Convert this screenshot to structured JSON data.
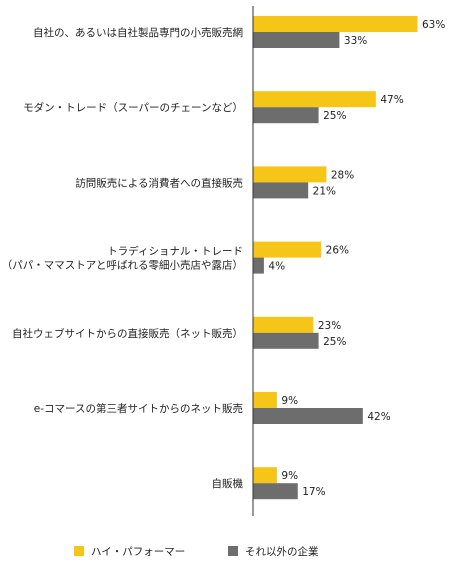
{
  "chart_data": {
    "type": "bar",
    "orientation": "horizontal",
    "categories": [
      [
        "自社の、あるいは自社製品専門の小売販売網"
      ],
      [
        "モダン・トレード（スーパーのチェーンなど）"
      ],
      [
        "訪問販売による消費者への直接販売"
      ],
      [
        "トラディショナル・トレード",
        "（パパ・ママストアと呼ばれる零細小売店や露店）"
      ],
      [
        "自社ウェブサイトからの直接販売（ネット販売）"
      ],
      [
        "e-コマースの第三者サイトからのネット販売"
      ],
      [
        "自販機"
      ]
    ],
    "series": [
      {
        "name": "ハイ・パフォーマー",
        "values": [
          63,
          47,
          28,
          26,
          23,
          9,
          9
        ],
        "color": "#F5C518"
      },
      {
        "name": "それ以外の企業",
        "values": [
          33,
          25,
          21,
          4,
          25,
          42,
          17
        ],
        "color": "#6D6D6D"
      }
    ],
    "value_suffix": "%",
    "xlim": [
      0,
      63
    ],
    "grid": false,
    "legend_position": "bottom",
    "axis_color": "#333333"
  }
}
